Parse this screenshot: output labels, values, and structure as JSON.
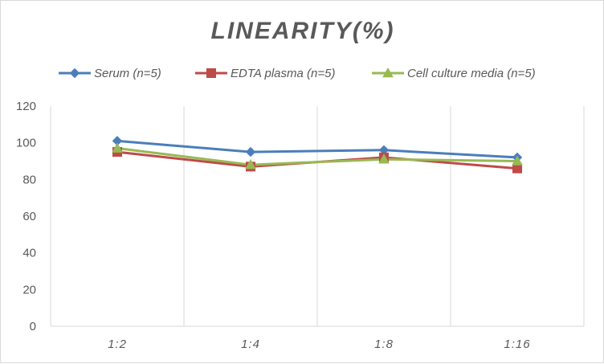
{
  "chart_data": {
    "type": "line",
    "title": "LINEARITY(%)",
    "xlabel": "",
    "ylabel": "",
    "categories": [
      "1:2",
      "1:4",
      "1:8",
      "1:16"
    ],
    "ylim": [
      0,
      120
    ],
    "yticks": [
      0,
      20,
      40,
      60,
      80,
      100,
      120
    ],
    "grid": "vertical",
    "legend_position": "top",
    "series": [
      {
        "name": "Serum (n=5)",
        "values": [
          101,
          95,
          96,
          92
        ],
        "color": "#4a7ebb",
        "marker": "diamond"
      },
      {
        "name": "EDTA plasma (n=5)",
        "values": [
          95,
          87,
          92,
          86
        ],
        "color": "#be4b48",
        "marker": "square"
      },
      {
        "name": "Cell culture media (n=5)",
        "values": [
          97,
          88,
          91,
          90
        ],
        "color": "#98b954",
        "marker": "triangle"
      }
    ]
  }
}
